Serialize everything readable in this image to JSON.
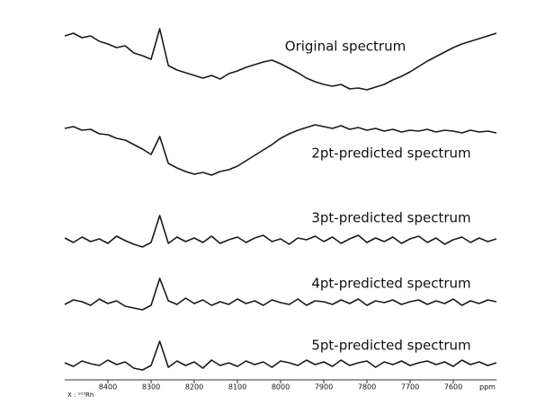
{
  "chart_data": {
    "type": "line",
    "xlabel": "ppm",
    "annotation": "X : ¹⁰³Rh",
    "xlim": [
      8500,
      7500
    ],
    "xticks": [
      8400,
      8300,
      8200,
      8100,
      8000,
      7900,
      7800,
      7700,
      7600
    ],
    "ylim": [
      -40,
      40
    ],
    "x": [
      8500,
      8480,
      8460,
      8440,
      8420,
      8400,
      8380,
      8360,
      8340,
      8320,
      8300,
      8280,
      8260,
      8240,
      8220,
      8200,
      8180,
      8160,
      8140,
      8120,
      8100,
      8080,
      8060,
      8040,
      8020,
      8000,
      7980,
      7960,
      7940,
      7920,
      7900,
      7880,
      7860,
      7840,
      7820,
      7800,
      7780,
      7760,
      7740,
      7720,
      7700,
      7680,
      7660,
      7640,
      7620,
      7600,
      7580,
      7560,
      7540,
      7520,
      7500
    ],
    "series": [
      {
        "name": "Original spectrum",
        "color": "#1a1a1a",
        "values": [
          30,
          33,
          28,
          30,
          24,
          21,
          17,
          19,
          11,
          8,
          4,
          38,
          -3,
          -8,
          -11,
          -14,
          -17,
          -14,
          -18,
          -12,
          -9,
          -5,
          -2,
          1,
          3,
          -1,
          -6,
          -11,
          -17,
          -21,
          -24,
          -26,
          -24,
          -29,
          -28,
          -30,
          -27,
          -24,
          -19,
          -15,
          -10,
          -4,
          2,
          7,
          12,
          17,
          21,
          24,
          27,
          30,
          33
        ]
      },
      {
        "name": "2pt-predicted spectrum",
        "color": "#1a1a1a",
        "values": [
          17,
          19,
          15,
          16,
          11,
          10,
          6,
          4,
          -1,
          -6,
          -12,
          8,
          -22,
          -27,
          -31,
          -34,
          -32,
          -35,
          -31,
          -29,
          -25,
          -19,
          -13,
          -7,
          -1,
          6,
          11,
          15,
          18,
          21,
          19,
          17,
          20,
          16,
          18,
          15,
          17,
          14,
          16,
          13,
          15,
          14,
          16,
          13,
          15,
          14,
          12,
          15,
          13,
          14,
          12
        ]
      },
      {
        "name": "3pt-predicted spectrum",
        "color": "#1a1a1a",
        "values": [
          3,
          -2,
          4,
          -1,
          2,
          -3,
          5,
          0,
          -4,
          -7,
          -2,
          28,
          -3,
          4,
          -1,
          3,
          -2,
          5,
          -3,
          1,
          4,
          -2,
          3,
          6,
          -1,
          2,
          -4,
          3,
          1,
          5,
          -1,
          4,
          -3,
          2,
          6,
          -2,
          3,
          -1,
          4,
          -3,
          2,
          5,
          -2,
          3,
          -4,
          1,
          4,
          -2,
          3,
          -1,
          2
        ]
      },
      {
        "name": "4pt-predicted spectrum",
        "color": "#1a1a1a",
        "values": [
          -2,
          3,
          1,
          -3,
          4,
          -1,
          2,
          -4,
          -6,
          -8,
          -3,
          27,
          2,
          -2,
          5,
          -1,
          3,
          -3,
          1,
          -2,
          4,
          -1,
          2,
          -3,
          3,
          0,
          -2,
          4,
          -3,
          2,
          1,
          -2,
          3,
          -1,
          4,
          -3,
          2,
          0,
          3,
          -2,
          1,
          3,
          -2,
          2,
          -1,
          4,
          -3,
          2,
          -1,
          3,
          1
        ]
      },
      {
        "name": "5pt-predicted spectrum",
        "color": "#1a1a1a",
        "values": [
          1,
          -3,
          3,
          0,
          -2,
          4,
          -1,
          2,
          -5,
          -7,
          -2,
          25,
          -4,
          3,
          -2,
          2,
          -5,
          4,
          -2,
          1,
          -3,
          3,
          -1,
          2,
          -4,
          3,
          1,
          -2,
          4,
          -1,
          2,
          -3,
          4,
          -2,
          1,
          3,
          -4,
          2,
          -1,
          3,
          -2,
          1,
          3,
          -1,
          2,
          -3,
          4,
          -1,
          2,
          -2,
          1
        ]
      }
    ]
  }
}
